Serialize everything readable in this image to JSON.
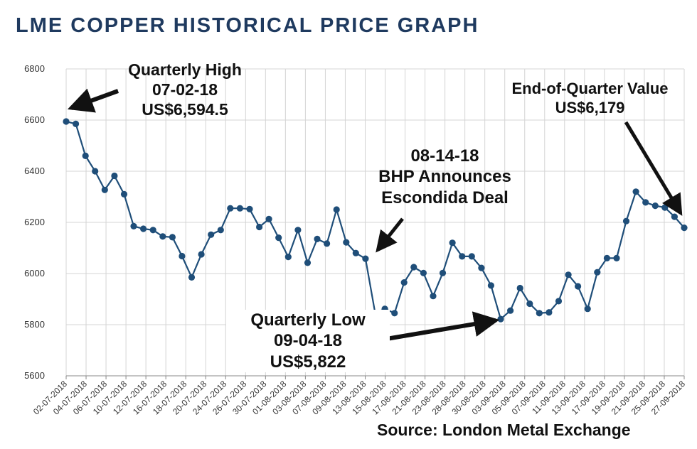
{
  "colors": {
    "title": "#1f3a5f",
    "series": "#1f4e79",
    "grid": "#d4d4d4",
    "annotation": "#111111"
  },
  "chart_data": {
    "type": "line",
    "title": "LME COPPER HISTORICAL PRICE GRAPH",
    "ylim": [
      5600,
      6800
    ],
    "yticks": [
      5600,
      5800,
      6000,
      6200,
      6400,
      6600,
      6800
    ],
    "xticks": [
      "02-07-2018",
      "04-07-2018",
      "06-07-2018",
      "10-07-2018",
      "12-07-2018",
      "16-07-2018",
      "18-07-2018",
      "20-07-2018",
      "24-07-2018",
      "26-07-2018",
      "30-07-2018",
      "01-08-2018",
      "03-08-2018",
      "07-08-2018",
      "09-08-2018",
      "13-08-2018",
      "15-08-2018",
      "17-08-2018",
      "21-08-2018",
      "23-08-2018",
      "28-08-2018",
      "30-08-2018",
      "03-09-2018",
      "05-09-2018",
      "07-09-2018",
      "11-09-2018",
      "13-09-2018",
      "17-09-2018",
      "19-09-2018",
      "21-09-2018",
      "25-09-2018",
      "27-09-2018"
    ],
    "grid": true,
    "legend": "none",
    "series": [
      {
        "values": [
          6594.5,
          6585,
          6460,
          6400,
          6327,
          6382,
          6310,
          6185,
          6175,
          6170,
          6145,
          6142,
          6068,
          5985,
          6075,
          6152,
          6170,
          6255,
          6255,
          6252,
          6182,
          6213,
          6140,
          6065,
          6170,
          6042,
          6135,
          6117,
          6250,
          6122,
          6080,
          6058,
          5845,
          5862,
          5845,
          5965,
          6025,
          6002,
          5912,
          6002,
          6120,
          6067,
          6067,
          6022,
          5953,
          5822,
          5855,
          5943,
          5882,
          5845,
          5848,
          5892,
          5995,
          5950,
          5862,
          6005,
          6060,
          6060,
          6205,
          6320,
          6278,
          6265,
          6258,
          6222,
          6179
        ]
      }
    ],
    "annotations": [
      {
        "lines": [
          "Quarterly High",
          "07-02-18",
          "US$6,594.5"
        ]
      },
      {
        "lines": [
          "End-of-Quarter Value",
          "US$6,179"
        ]
      },
      {
        "lines": [
          "08-14-18",
          "BHP Announces",
          "Escondida Deal"
        ]
      },
      {
        "lines": [
          "Quarterly Low",
          "09-04-18",
          "US$5,822"
        ]
      }
    ],
    "source": "Source: London Metal Exchange"
  }
}
